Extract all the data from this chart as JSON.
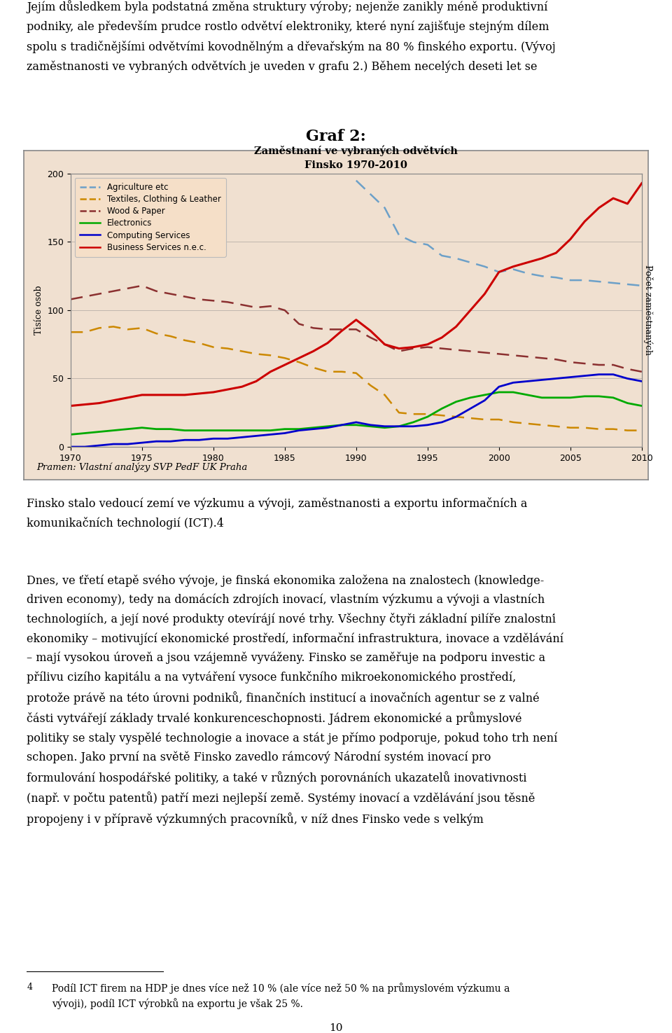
{
  "outer_title": "Graf 2:",
  "chart_title": "Zaměstnaní ve vybraných odvětvích\nFinsko 1970-2010",
  "ylabel_left": "Tisíce osob",
  "ylabel_right": "Počet zaměstnaných",
  "source_text": "Pramen: Vlastní analýzy SVP PedF UK Praha",
  "ylim": [
    0,
    200
  ],
  "xlim": [
    1970,
    2010
  ],
  "yticks": [
    0,
    50,
    100,
    150,
    200
  ],
  "xticks": [
    1970,
    1975,
    1980,
    1985,
    1990,
    1995,
    2000,
    2005,
    2010
  ],
  "background_box": "#f0e0d0",
  "background_plot": "#f0e0d0",
  "series": {
    "Agriculture etc": {
      "color": "#6ca0c8",
      "linestyle": "dashed",
      "linewidth": 1.8,
      "years": [
        1990,
        1991,
        1992,
        1993,
        1994,
        1995,
        1996,
        1997,
        1998,
        1999,
        2000,
        2001,
        2002,
        2003,
        2004,
        2005,
        2006,
        2007,
        2008,
        2009,
        2010
      ],
      "values": [
        195,
        185,
        175,
        155,
        150,
        148,
        140,
        138,
        135,
        132,
        128,
        130,
        127,
        125,
        124,
        122,
        122,
        121,
        120,
        119,
        118
      ]
    },
    "Textiles, Clothing & Leather": {
      "color": "#cc8800",
      "linestyle": "dashed",
      "linewidth": 1.8,
      "years": [
        1970,
        1971,
        1972,
        1973,
        1974,
        1975,
        1976,
        1977,
        1978,
        1979,
        1980,
        1981,
        1982,
        1983,
        1984,
        1985,
        1986,
        1987,
        1988,
        1989,
        1990,
        1991,
        1992,
        1993,
        1994,
        1995,
        1996,
        1997,
        1998,
        1999,
        2000,
        2001,
        2002,
        2003,
        2004,
        2005,
        2006,
        2007,
        2008,
        2009,
        2010
      ],
      "values": [
        84,
        84,
        87,
        88,
        86,
        87,
        83,
        81,
        78,
        76,
        73,
        72,
        70,
        68,
        67,
        65,
        62,
        58,
        55,
        55,
        54,
        45,
        38,
        25,
        24,
        24,
        23,
        22,
        21,
        20,
        20,
        18,
        17,
        16,
        15,
        14,
        14,
        13,
        13,
        12,
        12
      ]
    },
    "Wood & Paper": {
      "color": "#8b3030",
      "linestyle": "dashed",
      "linewidth": 1.8,
      "years": [
        1970,
        1971,
        1972,
        1973,
        1974,
        1975,
        1976,
        1977,
        1978,
        1979,
        1980,
        1981,
        1982,
        1983,
        1984,
        1985,
        1986,
        1987,
        1988,
        1989,
        1990,
        1991,
        1992,
        1993,
        1994,
        1995,
        1996,
        1997,
        1998,
        1999,
        2000,
        2001,
        2002,
        2003,
        2004,
        2005,
        2006,
        2007,
        2008,
        2009,
        2010
      ],
      "values": [
        108,
        110,
        112,
        114,
        116,
        118,
        114,
        112,
        110,
        108,
        107,
        106,
        104,
        102,
        103,
        100,
        90,
        87,
        86,
        86,
        86,
        80,
        75,
        70,
        72,
        73,
        72,
        71,
        70,
        69,
        68,
        67,
        66,
        65,
        64,
        62,
        61,
        60,
        60,
        57,
        55
      ]
    },
    "Electronics": {
      "color": "#00aa00",
      "linestyle": "solid",
      "linewidth": 2.0,
      "years": [
        1970,
        1971,
        1972,
        1973,
        1974,
        1975,
        1976,
        1977,
        1978,
        1979,
        1980,
        1981,
        1982,
        1983,
        1984,
        1985,
        1986,
        1987,
        1988,
        1989,
        1990,
        1991,
        1992,
        1993,
        1994,
        1995,
        1996,
        1997,
        1998,
        1999,
        2000,
        2001,
        2002,
        2003,
        2004,
        2005,
        2006,
        2007,
        2008,
        2009,
        2010
      ],
      "values": [
        9,
        10,
        11,
        12,
        13,
        14,
        13,
        13,
        12,
        12,
        12,
        12,
        12,
        12,
        12,
        13,
        13,
        14,
        15,
        16,
        16,
        15,
        14,
        15,
        18,
        22,
        28,
        33,
        36,
        38,
        40,
        40,
        38,
        36,
        36,
        36,
        37,
        37,
        36,
        32,
        30
      ]
    },
    "Computing Services": {
      "color": "#0000cc",
      "linestyle": "solid",
      "linewidth": 2.0,
      "years": [
        1970,
        1971,
        1972,
        1973,
        1974,
        1975,
        1976,
        1977,
        1978,
        1979,
        1980,
        1981,
        1982,
        1983,
        1984,
        1985,
        1986,
        1987,
        1988,
        1989,
        1990,
        1991,
        1992,
        1993,
        1994,
        1995,
        1996,
        1997,
        1998,
        1999,
        2000,
        2001,
        2002,
        2003,
        2004,
        2005,
        2006,
        2007,
        2008,
        2009,
        2010
      ],
      "values": [
        0,
        0,
        1,
        2,
        2,
        3,
        4,
        4,
        5,
        5,
        6,
        6,
        7,
        8,
        9,
        10,
        12,
        13,
        14,
        16,
        18,
        16,
        15,
        15,
        15,
        16,
        18,
        22,
        28,
        34,
        44,
        47,
        48,
        49,
        50,
        51,
        52,
        53,
        53,
        50,
        48
      ]
    },
    "Business Services n.e.c.": {
      "color": "#cc0000",
      "linestyle": "solid",
      "linewidth": 2.2,
      "years": [
        1970,
        1971,
        1972,
        1973,
        1974,
        1975,
        1976,
        1977,
        1978,
        1979,
        1980,
        1981,
        1982,
        1983,
        1984,
        1985,
        1986,
        1987,
        1988,
        1989,
        1990,
        1991,
        1992,
        1993,
        1994,
        1995,
        1996,
        1997,
        1998,
        1999,
        2000,
        2001,
        2002,
        2003,
        2004,
        2005,
        2006,
        2007,
        2008,
        2009,
        2010
      ],
      "values": [
        30,
        31,
        32,
        34,
        36,
        38,
        38,
        38,
        38,
        39,
        40,
        42,
        44,
        48,
        55,
        60,
        65,
        70,
        76,
        85,
        93,
        85,
        75,
        72,
        73,
        75,
        80,
        88,
        100,
        112,
        128,
        132,
        135,
        138,
        142,
        152,
        165,
        175,
        182,
        178,
        193
      ]
    }
  },
  "legend_entries": [
    "Agriculture etc",
    "Textiles, Clothing & Leather",
    "Wood & Paper",
    "Electronics",
    "Computing Services",
    "Business Services n.e.c."
  ],
  "top_text_line1": "Jejím důsledkem byla podstatná změna struktury výroby; nejenz̆e zanikly méně produktivní",
  "top_text_line2": "podniky, ale především prudce rostlo odvětví elektroniky, které nyní zajišťuje stejným dílem",
  "top_text_line3": "spolu s tradičnějšími odvětvími kovodnělným a dřevařským na 80 % finského exportu. (Vývoj",
  "top_text_line4": "zaměstnanosti ve vybraných odvětvích je uveden v grafu 2.) Během necelých deseti let se",
  "after_text_line1": "Finsko stalo vedoucí zemí ve výzkumu a vývoji, zaměstnanosti a exportu informačních a",
  "after_text_line2": "komunikačních technologií (ICT).",
  "footnote_super": "4",
  "page_number": "10"
}
